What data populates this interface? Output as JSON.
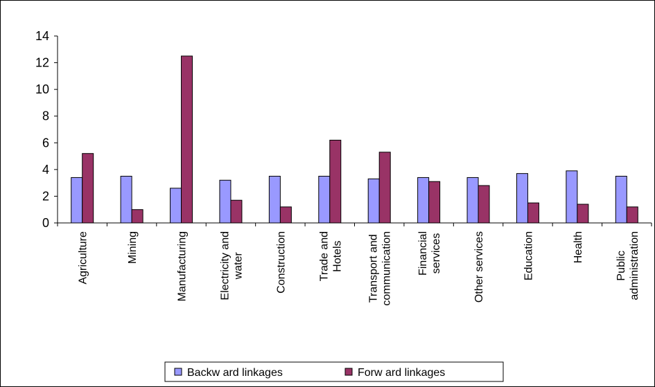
{
  "chart_data": {
    "type": "bar",
    "title": "",
    "xlabel": "",
    "ylabel": "",
    "ylim": [
      0,
      14
    ],
    "yticks": [
      0,
      2,
      4,
      6,
      8,
      10,
      12,
      14
    ],
    "categories": [
      [
        "Agriculture"
      ],
      [
        "Mining"
      ],
      [
        "Manufacturing"
      ],
      [
        "Electricity and",
        "water"
      ],
      [
        "Construction"
      ],
      [
        "Trade and",
        "Hotels"
      ],
      [
        "Transport and",
        "communication"
      ],
      [
        "Financial",
        "services"
      ],
      [
        "Other services"
      ],
      [
        "Education"
      ],
      [
        "Health"
      ],
      [
        "Public",
        "administration"
      ]
    ],
    "series": [
      {
        "name": "Backw ard linkages",
        "color": "#9999ff",
        "values": [
          3.4,
          3.5,
          2.6,
          3.2,
          3.5,
          3.5,
          3.3,
          3.4,
          3.4,
          3.7,
          3.9,
          3.5
        ]
      },
      {
        "name": "Forw ard linkages",
        "color": "#993366",
        "values": [
          5.2,
          1.0,
          12.5,
          1.7,
          1.2,
          6.2,
          5.3,
          3.1,
          2.8,
          1.5,
          1.4,
          1.2
        ]
      }
    ],
    "grid": false,
    "legend": "bottom"
  }
}
